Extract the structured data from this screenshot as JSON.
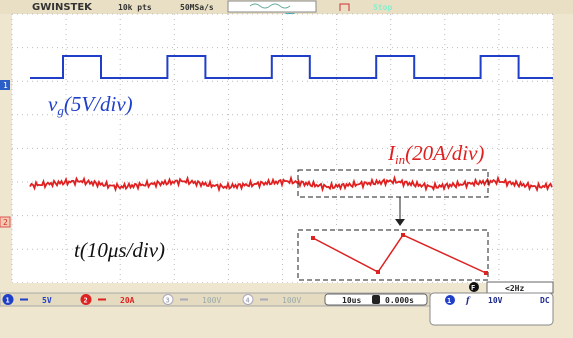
{
  "header": {
    "brand": "GWINSTEK",
    "points": "10k pts",
    "sample_rate": "50MSa/s",
    "status": "Stop"
  },
  "channel_markers": [
    "1",
    "2"
  ],
  "annotations": {
    "vg": {
      "symbol": "v",
      "subscript": "g",
      "scale": "(5V/div)"
    },
    "iin": {
      "symbol": "I",
      "subscript": "in",
      "scale": "(20A/div)"
    },
    "time": {
      "text": "t(10μs/div)"
    }
  },
  "footer": {
    "channels": [
      {
        "number": "1",
        "scale": "5V"
      },
      {
        "number": "2",
        "scale": "20A"
      },
      {
        "number": "3",
        "scale": "100V"
      },
      {
        "number": "4",
        "scale": "100V"
      }
    ],
    "timebase": "10us",
    "position": "0.000s",
    "frequency": "<2Hz",
    "menu_key": "F",
    "trigger": {
      "source": "1",
      "slope": "f",
      "level": "10V",
      "coupling": "DC"
    }
  }
}
